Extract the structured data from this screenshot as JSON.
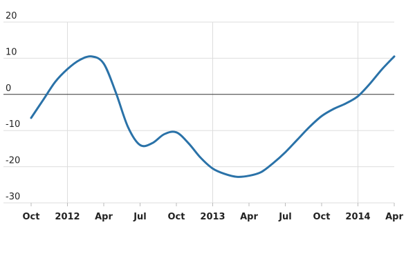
{
  "chart_data": {
    "type": "line",
    "title": "",
    "xlabel": "",
    "ylabel": "",
    "x_tick_labels": [
      "Oct",
      "2012",
      "Apr",
      "Jul",
      "Oct",
      "2013",
      "Apr",
      "Jul",
      "Oct",
      "2014",
      "Apr"
    ],
    "x_tick_dates": [
      "2011-10",
      "2012-01",
      "2012-04",
      "2012-07",
      "2012-10",
      "2013-01",
      "2013-04",
      "2013-07",
      "2013-10",
      "2014-01",
      "2014-04"
    ],
    "y_tick_labels": [
      "20",
      "10",
      "0",
      "-10",
      "-20",
      "-30"
    ],
    "y_ticks": [
      20,
      10,
      0,
      -10,
      -20,
      -30
    ],
    "ylim": [
      -30,
      20
    ],
    "xlim": [
      "2011-10",
      "2014-04"
    ],
    "grid": true,
    "zero_line": true,
    "series": [
      {
        "color": "#2a72a8",
        "x": [
          "2011-10",
          "2011-11",
          "2011-12",
          "2012-01",
          "2012-02",
          "2012-03",
          "2012-04",
          "2012-05",
          "2012-06",
          "2012-07",
          "2012-08",
          "2012-09",
          "2012-10",
          "2012-11",
          "2012-12",
          "2013-01",
          "2013-02",
          "2013-03",
          "2013-04",
          "2013-05",
          "2013-06",
          "2013-07",
          "2013-08",
          "2013-09",
          "2013-10",
          "2013-11",
          "2013-12",
          "2014-01",
          "2014-02",
          "2014-03",
          "2014-04"
        ],
        "values": [
          -6.5,
          -1.5,
          3.5,
          7.0,
          9.5,
          10.5,
          8.5,
          0.5,
          -9.0,
          -14.0,
          -13.5,
          -11.0,
          -10.5,
          -13.5,
          -17.5,
          -20.5,
          -22.0,
          -22.8,
          -22.5,
          -21.5,
          -19.0,
          -16.0,
          -12.5,
          -9.0,
          -6.0,
          -4.0,
          -2.5,
          -0.5,
          3.0,
          7.0,
          10.5
        ]
      }
    ]
  }
}
